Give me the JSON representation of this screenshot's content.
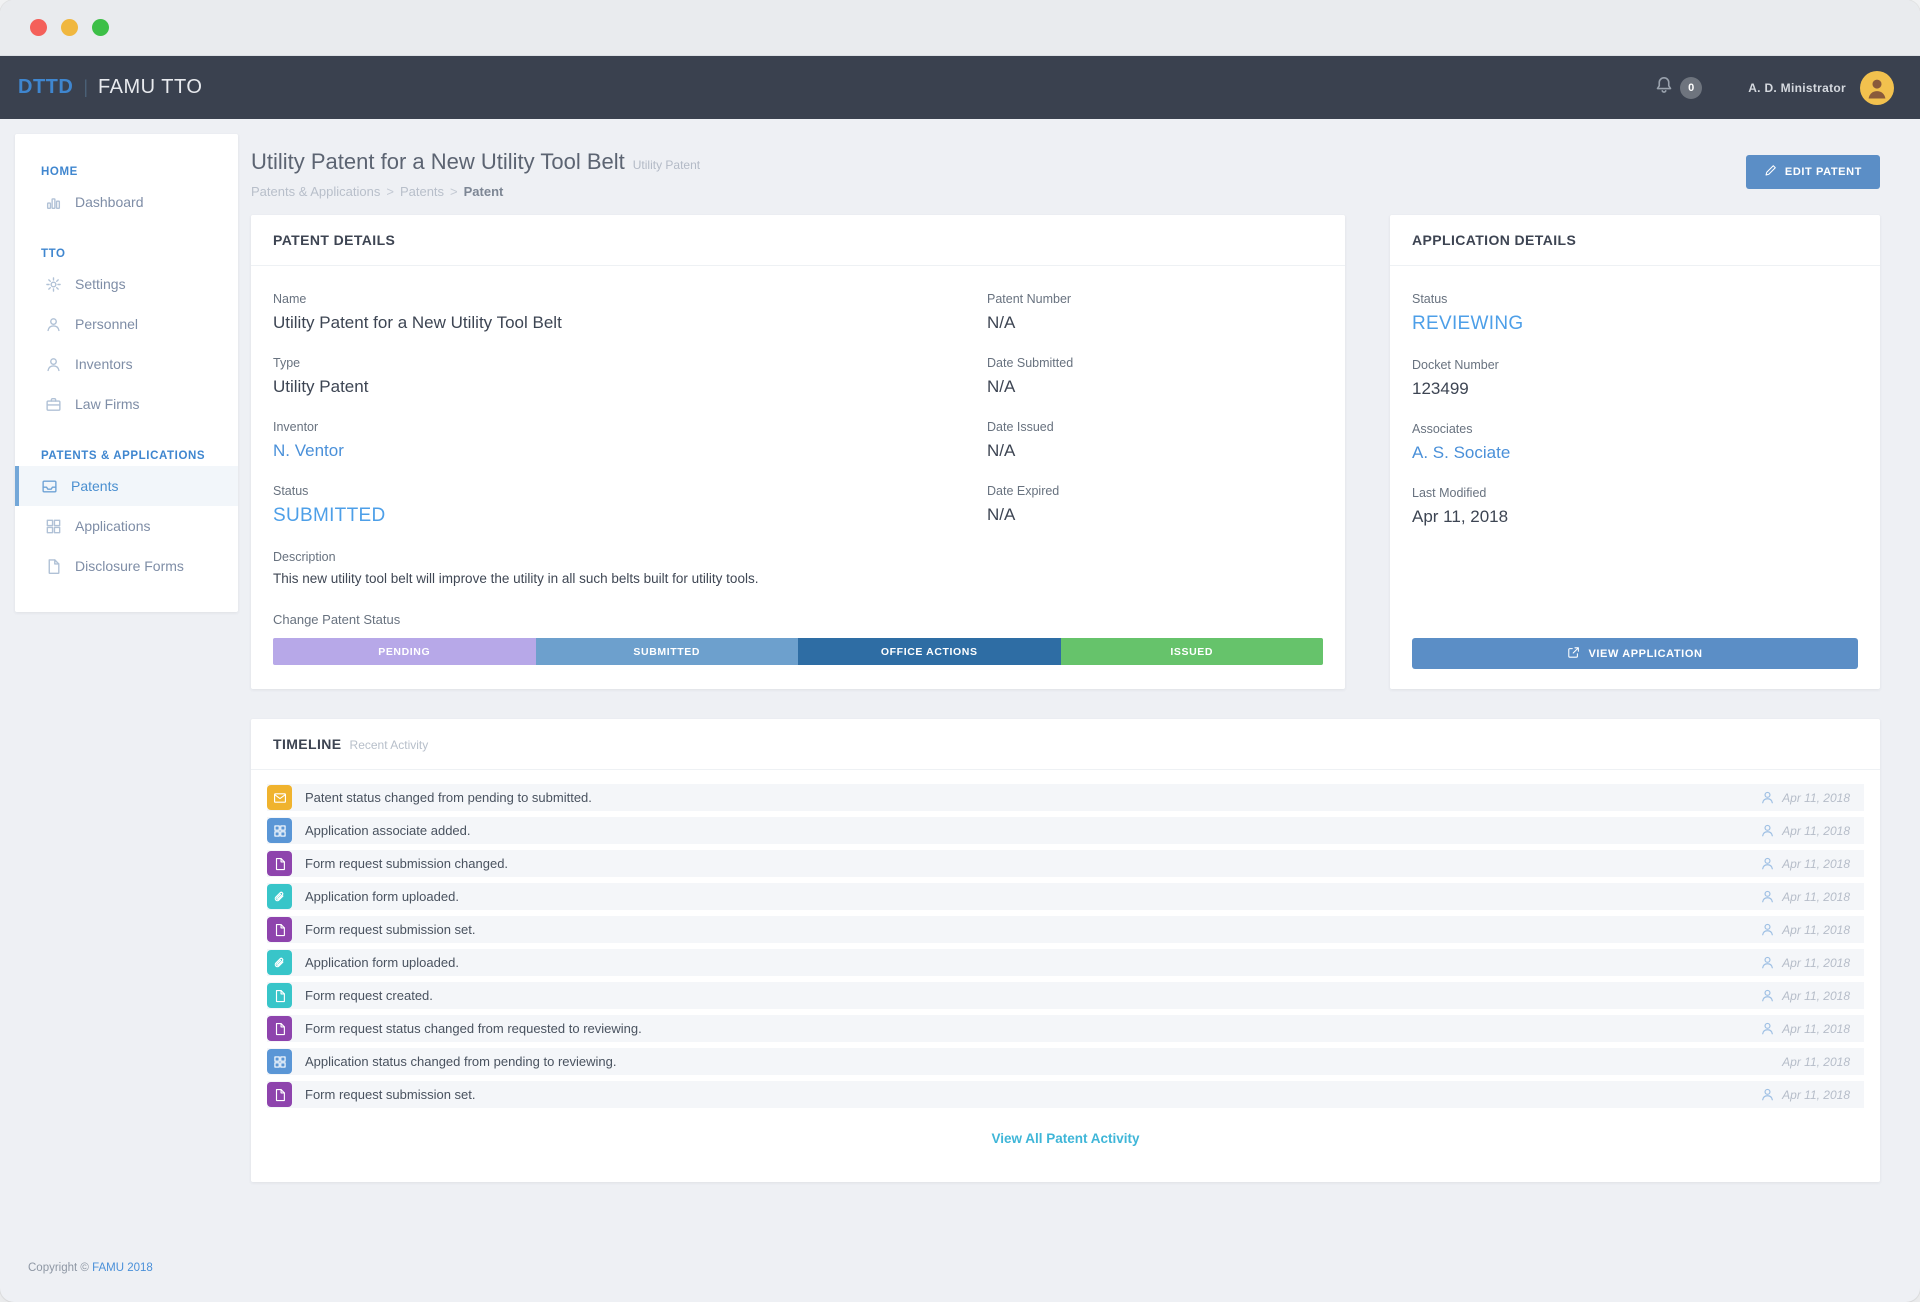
{
  "navbar": {
    "brand": "DTTD",
    "separator": "|",
    "app_name": "FAMU TTO",
    "notification_count": "0",
    "user_name": "A. D. Ministrator"
  },
  "sidebar": {
    "sections": [
      {
        "label": "HOME",
        "items": [
          {
            "label": "Dashboard",
            "icon": "bar-chart-icon",
            "active": false
          }
        ]
      },
      {
        "label": "TTO",
        "items": [
          {
            "label": "Settings",
            "icon": "gear-icon",
            "active": false
          },
          {
            "label": "Personnel",
            "icon": "person-icon",
            "active": false
          },
          {
            "label": "Inventors",
            "icon": "person-icon",
            "active": false
          },
          {
            "label": "Law Firms",
            "icon": "briefcase-icon",
            "active": false
          }
        ]
      },
      {
        "label": "PATENTS & APPLICATIONS",
        "items": [
          {
            "label": "Patents",
            "icon": "inbox-icon",
            "active": true
          },
          {
            "label": "Applications",
            "icon": "grid-icon",
            "active": false
          },
          {
            "label": "Disclosure Forms",
            "icon": "file-icon",
            "active": false
          }
        ]
      }
    ]
  },
  "page_header": {
    "title": "Utility Patent for a New Utility Tool Belt",
    "title_tag": "Utility Patent",
    "breadcrumb": [
      "Patents & Applications",
      "Patents",
      "Patent"
    ],
    "edit_button_label": "EDIT PATENT"
  },
  "patent_details": {
    "card_title": "PATENT DETAILS",
    "fields_left": [
      {
        "label": "Name",
        "value": "Utility Patent for a New Utility Tool Belt",
        "type": "text"
      },
      {
        "label": "Type",
        "value": "Utility Patent",
        "type": "text"
      },
      {
        "label": "Inventor",
        "value": "N. Ventor",
        "type": "link"
      },
      {
        "label": "Status",
        "value": "SUBMITTED",
        "type": "status"
      }
    ],
    "fields_right": [
      {
        "label": "Patent Number",
        "value": "N/A",
        "type": "text"
      },
      {
        "label": "Date Submitted",
        "value": "N/A",
        "type": "text"
      },
      {
        "label": "Date Issued",
        "value": "N/A",
        "type": "text"
      },
      {
        "label": "Date Expired",
        "value": "N/A",
        "type": "text"
      }
    ],
    "description_label": "Description",
    "description": "This new utility tool belt will improve the utility in all such belts built for utility tools.",
    "change_status_label": "Change Patent Status",
    "status_segments": [
      {
        "label": "PENDING",
        "color": "#b7a8e8"
      },
      {
        "label": "SUBMITTED",
        "color": "#6da0cd"
      },
      {
        "label": "OFFICE ACTIONS",
        "color": "#2e6da4"
      },
      {
        "label": "ISSUED",
        "color": "#66c36b"
      }
    ]
  },
  "application_details": {
    "card_title": "APPLICATION DETAILS",
    "fields": [
      {
        "label": "Status",
        "value": "REVIEWING",
        "type": "status"
      },
      {
        "label": "Docket Number",
        "value": "123499",
        "type": "text"
      },
      {
        "label": "Associates",
        "value": "A. S. Sociate",
        "type": "link"
      },
      {
        "label": "Last Modified",
        "value": "Apr 11, 2018",
        "type": "text"
      }
    ],
    "view_button_label": "VIEW APPLICATION"
  },
  "timeline": {
    "card_title": "TIMELINE",
    "card_subtitle": "Recent Activity",
    "events": [
      {
        "icon": "envelope-icon",
        "color": "#f0b32e",
        "text": "Patent status changed from pending to submitted.",
        "date": "Apr 11, 2018",
        "has_user": true
      },
      {
        "icon": "grid-icon",
        "color": "#5a96d6",
        "text": "Application associate added.",
        "date": "Apr 11, 2018",
        "has_user": true
      },
      {
        "icon": "file-icon",
        "color": "#8e44ad",
        "text": "Form request submission changed.",
        "date": "Apr 11, 2018",
        "has_user": true
      },
      {
        "icon": "paperclip-icon",
        "color": "#38c5c9",
        "text": "Application form uploaded.",
        "date": "Apr 11, 2018",
        "has_user": true
      },
      {
        "icon": "file-icon",
        "color": "#8e44ad",
        "text": "Form request submission set.",
        "date": "Apr 11, 2018",
        "has_user": true
      },
      {
        "icon": "paperclip-icon",
        "color": "#38c5c9",
        "text": "Application form uploaded.",
        "date": "Apr 11, 2018",
        "has_user": true
      },
      {
        "icon": "file-icon",
        "color": "#38c5c9",
        "text": "Form request created.",
        "date": "Apr 11, 2018",
        "has_user": true
      },
      {
        "icon": "file-icon",
        "color": "#8e44ad",
        "text": "Form request status changed from requested to reviewing.",
        "date": "Apr 11, 2018",
        "has_user": true
      },
      {
        "icon": "grid-icon",
        "color": "#5a96d6",
        "text": "Application status changed from pending to reviewing.",
        "date": "Apr 11, 2018",
        "has_user": false
      },
      {
        "icon": "file-icon",
        "color": "#8e44ad",
        "text": "Form request submission set.",
        "date": "Apr 11, 2018",
        "has_user": true
      }
    ],
    "view_all_link": "View All Patent Activity"
  },
  "footer": {
    "copyright_prefix": "Copyright © ",
    "copyright_link": "FAMU 2018"
  }
}
